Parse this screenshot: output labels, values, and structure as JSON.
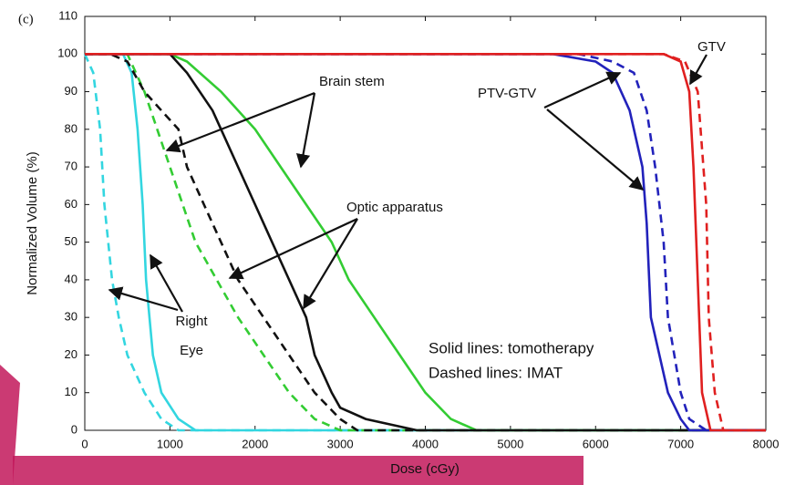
{
  "chart_data": {
    "type": "line",
    "x_label": "Dose (cGy)",
    "y_label": "Normalized Volume (%)",
    "xlim": [
      0,
      8000
    ],
    "ylim": [
      0,
      110
    ],
    "xticks": [
      0,
      1000,
      2000,
      3000,
      4000,
      5000,
      6000,
      7000,
      8000
    ],
    "yticks": [
      0,
      10,
      20,
      30,
      40,
      50,
      60,
      70,
      80,
      90,
      100,
      110
    ],
    "annotations": [
      "(c)",
      "Brain stem",
      "Optic apparatus",
      "Right",
      "Eye",
      "PTV-GTV",
      "GTV",
      "Solid lines: tomotherapy",
      "Dashed lines: IMAT"
    ],
    "series": [
      {
        "color": "#33d6e0",
        "dashed": false,
        "x": [
          0,
          450,
          550,
          620,
          680,
          720,
          800,
          900,
          1100,
          1300,
          8000
        ],
        "values": [
          100,
          100,
          95,
          80,
          60,
          40,
          20,
          10,
          3,
          0,
          0
        ]
      },
      {
        "color": "#33d6e0",
        "dashed": true,
        "x": [
          0,
          100,
          180,
          230,
          320,
          400,
          500,
          700,
          900,
          1100,
          8000
        ],
        "values": [
          100,
          95,
          80,
          60,
          40,
          30,
          20,
          10,
          3,
          0,
          0
        ]
      },
      {
        "color": "#33cc33",
        "dashed": false,
        "x": [
          0,
          1000,
          1200,
          1600,
          2000,
          2300,
          2600,
          2900,
          3100,
          3400,
          3700,
          4000,
          4300,
          4600,
          8000
        ],
        "values": [
          100,
          100,
          98,
          90,
          80,
          70,
          60,
          50,
          40,
          30,
          20,
          10,
          3,
          0,
          0
        ]
      },
      {
        "color": "#33cc33",
        "dashed": true,
        "x": [
          0,
          500,
          600,
          700,
          850,
          1000,
          1150,
          1300,
          1550,
          1800,
          2100,
          2400,
          2700,
          3000,
          8000
        ],
        "values": [
          100,
          100,
          95,
          90,
          80,
          70,
          60,
          50,
          40,
          30,
          20,
          10,
          3,
          0,
          0
        ]
      },
      {
        "color": "#111111",
        "dashed": false,
        "x": [
          0,
          1000,
          1200,
          1500,
          1800,
          2000,
          2200,
          2400,
          2600,
          2700,
          2900,
          3000,
          3300,
          3900,
          8000
        ],
        "values": [
          100,
          100,
          95,
          85,
          70,
          60,
          50,
          40,
          30,
          20,
          10,
          6,
          3,
          0,
          0
        ]
      },
      {
        "color": "#111111",
        "dashed": true,
        "x": [
          0,
          300,
          500,
          700,
          900,
          1100,
          1200,
          1400,
          1600,
          1800,
          2100,
          2400,
          2700,
          3000,
          3200,
          8000
        ],
        "values": [
          100,
          100,
          98,
          90,
          85,
          80,
          70,
          60,
          50,
          40,
          30,
          20,
          10,
          3,
          0,
          0
        ]
      },
      {
        "color": "#2222bb",
        "dashed": false,
        "x": [
          0,
          5500,
          6000,
          6200,
          6400,
          6550,
          6600,
          6650,
          6850,
          7000,
          7100,
          8000
        ],
        "values": [
          100,
          100,
          98,
          95,
          85,
          70,
          55,
          30,
          10,
          3,
          0,
          0
        ]
      },
      {
        "color": "#2222bb",
        "dashed": true,
        "x": [
          0,
          5800,
          6200,
          6450,
          6600,
          6700,
          6800,
          6850,
          7000,
          7100,
          7300,
          8000
        ],
        "values": [
          100,
          100,
          98,
          95,
          85,
          70,
          50,
          30,
          10,
          3,
          0,
          0
        ]
      },
      {
        "color": "#e02020",
        "dashed": false,
        "x": [
          0,
          6800,
          7000,
          7100,
          7150,
          7200,
          7250,
          7350,
          8000
        ],
        "values": [
          100,
          100,
          98,
          90,
          70,
          40,
          10,
          0,
          0
        ]
      },
      {
        "color": "#e02020",
        "dashed": true,
        "x": [
          0,
          6800,
          7050,
          7200,
          7300,
          7330,
          7400,
          7500,
          8000
        ],
        "values": [
          100,
          100,
          98,
          90,
          60,
          30,
          10,
          0,
          0
        ]
      }
    ]
  }
}
